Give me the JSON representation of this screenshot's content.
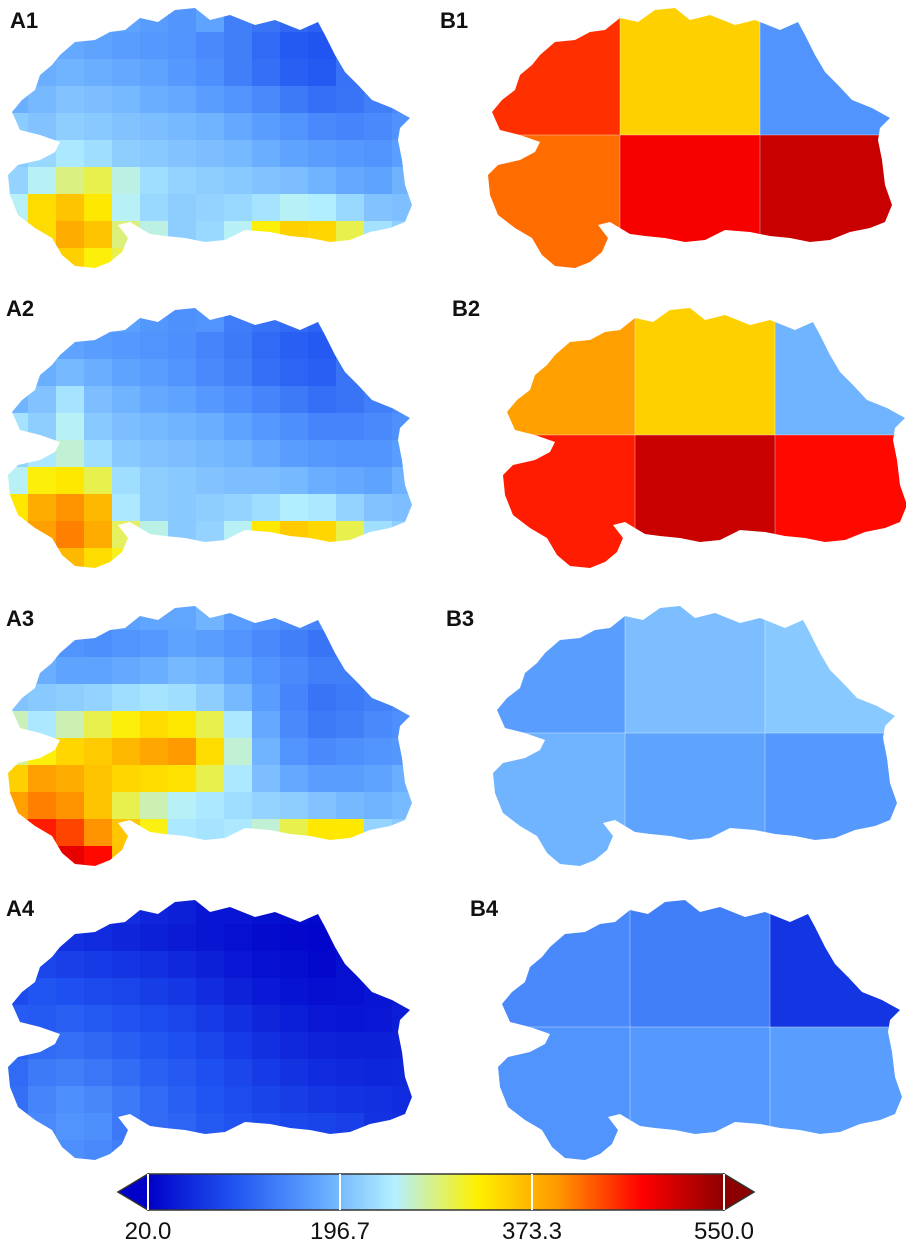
{
  "panels": [
    {
      "id": "A1",
      "label": "A1"
    },
    {
      "id": "B1",
      "label": "B1"
    },
    {
      "id": "A2",
      "label": "A2"
    },
    {
      "id": "B2",
      "label": "B2"
    },
    {
      "id": "A3",
      "label": "A3"
    },
    {
      "id": "B3",
      "label": "B3"
    },
    {
      "id": "A4",
      "label": "A4"
    },
    {
      "id": "B4",
      "label": "B4"
    }
  ],
  "colorbar": {
    "min": 20.0,
    "max": 550.0,
    "ticks": [
      "20.0",
      "196.7",
      "373.3",
      "550.0"
    ],
    "extend": "both",
    "colors": [
      "#0000c8",
      "#1e50f0",
      "#5aa0ff",
      "#b4f0ff",
      "#fff000",
      "#ff9600",
      "#ff0000",
      "#8c0000"
    ]
  },
  "grid_values": {
    "A1": [
      [
        0,
        0,
        0,
        0,
        0,
        0,
        0,
        175,
        0,
        0,
        0,
        0,
        0,
        0,
        0
      ],
      [
        0,
        175,
        180,
        175,
        170,
        165,
        160,
        150,
        140,
        120,
        105,
        100,
        0,
        0,
        0
      ],
      [
        170,
        185,
        190,
        185,
        180,
        175,
        165,
        155,
        140,
        125,
        110,
        105,
        0,
        0,
        0
      ],
      [
        185,
        195,
        205,
        200,
        195,
        185,
        180,
        170,
        160,
        150,
        135,
        125,
        130,
        0,
        0
      ],
      [
        0,
        205,
        215,
        210,
        205,
        200,
        195,
        190,
        180,
        170,
        160,
        150,
        145,
        150,
        0
      ],
      [
        210,
        225,
        240,
        230,
        215,
        210,
        205,
        200,
        195,
        185,
        175,
        170,
        165,
        160,
        0
      ],
      [
        220,
        250,
        285,
        300,
        255,
        230,
        220,
        215,
        210,
        205,
        200,
        190,
        180,
        175,
        0
      ],
      [
        250,
        340,
        360,
        330,
        250,
        225,
        215,
        220,
        225,
        235,
        250,
        245,
        225,
        205,
        0
      ],
      [
        0,
        340,
        380,
        360,
        0,
        0,
        215,
        225,
        250,
        320,
        350,
        345,
        300,
        0,
        0
      ],
      [
        0,
        0,
        350,
        320,
        0,
        0,
        0,
        0,
        0,
        0,
        0,
        0,
        0,
        0,
        0
      ]
    ],
    "A2": [
      [
        0,
        0,
        0,
        0,
        0,
        0,
        0,
        160,
        0,
        0,
        0,
        0,
        0,
        0,
        0
      ],
      [
        0,
        170,
        175,
        170,
        165,
        160,
        155,
        145,
        135,
        120,
        110,
        105,
        0,
        0,
        0
      ],
      [
        175,
        185,
        195,
        185,
        175,
        170,
        160,
        150,
        140,
        125,
        115,
        110,
        0,
        0,
        0
      ],
      [
        190,
        205,
        235,
        200,
        190,
        180,
        175,
        165,
        155,
        145,
        135,
        125,
        130,
        0,
        0
      ],
      [
        0,
        215,
        250,
        210,
        200,
        195,
        190,
        185,
        175,
        165,
        155,
        145,
        145,
        150,
        0
      ],
      [
        220,
        240,
        260,
        230,
        210,
        205,
        200,
        195,
        190,
        180,
        170,
        165,
        160,
        160,
        0
      ],
      [
        250,
        320,
        330,
        300,
        230,
        215,
        210,
        205,
        200,
        200,
        195,
        185,
        180,
        175,
        0
      ],
      [
        330,
        380,
        400,
        370,
        240,
        215,
        210,
        215,
        220,
        230,
        245,
        240,
        220,
        205,
        0
      ],
      [
        0,
        390,
        410,
        380,
        0,
        0,
        210,
        220,
        250,
        330,
        355,
        345,
        300,
        0,
        0
      ],
      [
        0,
        0,
        370,
        340,
        0,
        0,
        0,
        0,
        0,
        0,
        0,
        0,
        0,
        0,
        0
      ]
    ],
    "A3": [
      [
        0,
        0,
        0,
        0,
        0,
        0,
        0,
        190,
        0,
        0,
        0,
        0,
        0,
        0,
        0
      ],
      [
        0,
        170,
        160,
        155,
        160,
        165,
        175,
        170,
        160,
        150,
        140,
        130,
        0,
        0,
        0
      ],
      [
        190,
        185,
        175,
        175,
        180,
        185,
        195,
        190,
        175,
        160,
        150,
        140,
        0,
        0,
        0
      ],
      [
        205,
        210,
        215,
        220,
        230,
        235,
        230,
        215,
        195,
        170,
        145,
        130,
        135,
        0,
        0
      ],
      [
        0,
        240,
        270,
        300,
        320,
        340,
        330,
        300,
        240,
        180,
        150,
        135,
        140,
        150,
        0
      ],
      [
        280,
        320,
        345,
        355,
        370,
        385,
        395,
        340,
        260,
        190,
        160,
        150,
        155,
        160,
        0
      ],
      [
        350,
        390,
        380,
        360,
        345,
        340,
        335,
        300,
        240,
        200,
        180,
        170,
        170,
        175,
        0
      ],
      [
        390,
        410,
        400,
        360,
        300,
        270,
        250,
        240,
        230,
        220,
        215,
        205,
        195,
        190,
        0
      ],
      [
        0,
        460,
        440,
        400,
        0,
        0,
        240,
        235,
        240,
        260,
        300,
        330,
        330,
        0,
        0
      ],
      [
        0,
        0,
        490,
        470,
        0,
        0,
        0,
        0,
        0,
        0,
        0,
        0,
        0,
        0,
        0
      ]
    ],
    "A4": [
      [
        0,
        0,
        0,
        0,
        0,
        0,
        0,
        40,
        0,
        0,
        0,
        0,
        0,
        0,
        0
      ],
      [
        0,
        70,
        65,
        60,
        55,
        50,
        45,
        40,
        35,
        30,
        28,
        25,
        0,
        0,
        0
      ],
      [
        80,
        85,
        80,
        75,
        70,
        65,
        58,
        50,
        42,
        36,
        32,
        28,
        0,
        0,
        0
      ],
      [
        90,
        100,
        95,
        90,
        85,
        78,
        72,
        62,
        52,
        44,
        38,
        34,
        35,
        0,
        0
      ],
      [
        0,
        105,
        110,
        105,
        98,
        92,
        85,
        75,
        65,
        55,
        48,
        42,
        40,
        42,
        0
      ],
      [
        110,
        120,
        125,
        118,
        110,
        102,
        95,
        85,
        75,
        65,
        58,
        52,
        50,
        50,
        0
      ],
      [
        120,
        135,
        140,
        132,
        122,
        112,
        104,
        95,
        86,
        76,
        68,
        62,
        58,
        56,
        0
      ],
      [
        125,
        145,
        155,
        148,
        135,
        120,
        110,
        100,
        92,
        84,
        78,
        72,
        68,
        65,
        0
      ],
      [
        0,
        150,
        160,
        155,
        0,
        0,
        115,
        105,
        98,
        92,
        88,
        84,
        80,
        0,
        0
      ],
      [
        0,
        0,
        155,
        150,
        0,
        0,
        0,
        0,
        0,
        0,
        0,
        0,
        0,
        0,
        0
      ]
    ],
    "B1": [
      [
        450,
        350,
        160
      ],
      [
        420,
        480,
        510
      ]
    ],
    "B2": [
      [
        390,
        350,
        190
      ],
      [
        460,
        510,
        470
      ]
    ],
    "B3": [
      [
        170,
        200,
        210
      ],
      [
        190,
        175,
        165
      ]
    ],
    "B4": [
      [
        150,
        140,
        70
      ],
      [
        160,
        165,
        170
      ]
    ]
  }
}
